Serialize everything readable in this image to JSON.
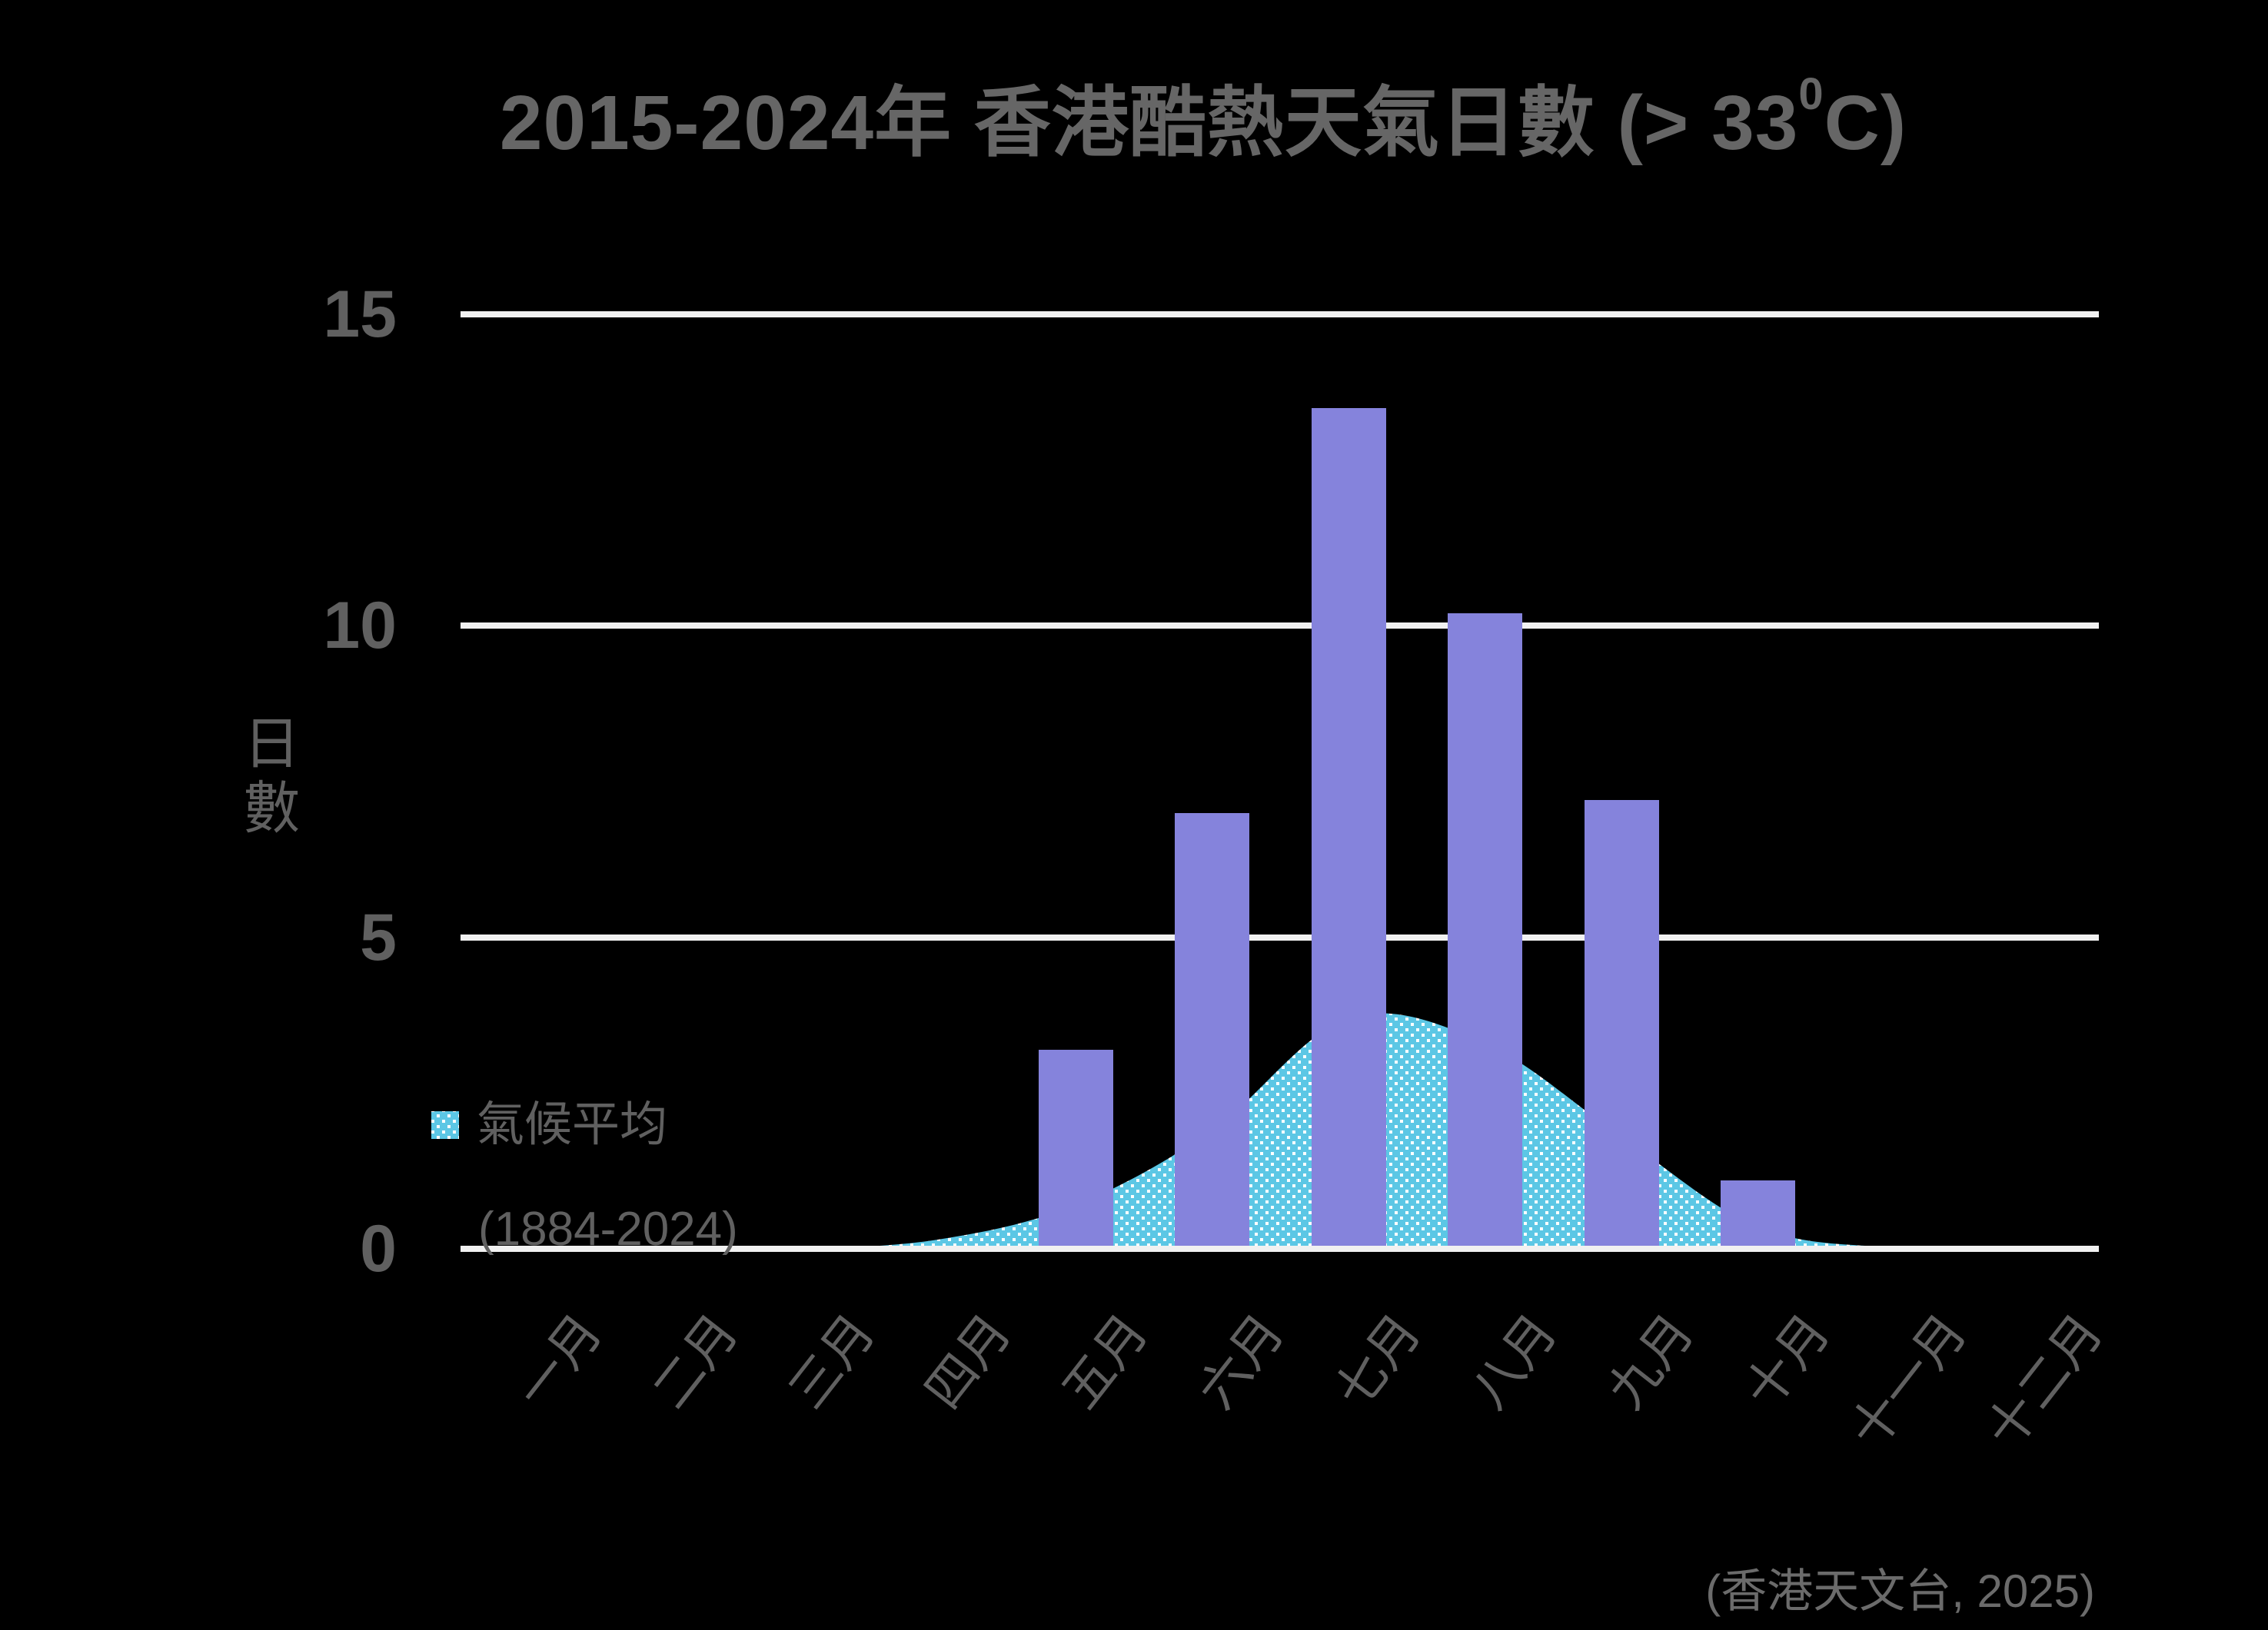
{
  "title": {
    "prefix": "2015-2024年 香港酷熱天氣日數 (> 33",
    "sup": "0",
    "suffix": "C)",
    "full": "2015-2024年 香港酷熱天氣日數 (> 33⁰C)"
  },
  "y_axis": {
    "title": "日數",
    "tick_labels": [
      "15",
      "10",
      "5",
      "0"
    ]
  },
  "legend": {
    "label": "氣候平均",
    "sublabel": "(1884-2024)"
  },
  "source": "(香港天文台, 2025)",
  "colors": {
    "background": "#000000",
    "bar": "#8583DC",
    "area": "#5CC7E5",
    "area_dot": "#FFFFFF",
    "gridline": "#F1F1F1",
    "text": "#606060",
    "title": "#666666"
  },
  "chart_data": {
    "type": "bar",
    "title": "2015-2024年 香港酷熱天氣日數 (> 33⁰C)",
    "xlabel": "",
    "ylabel": "日數",
    "ylim": [
      0,
      15
    ],
    "gridlines": [
      15,
      10,
      5,
      0
    ],
    "grid": "horizontal",
    "legend_position": "left-middle",
    "categories": [
      "一月",
      "二月",
      "三月",
      "四月",
      "五月",
      "六月",
      "七月",
      "八月",
      "九月",
      "十月",
      "十一月",
      "十二月"
    ],
    "series": [
      {
        "name": "2015-2024年 酷熱天氣日數",
        "type": "bar",
        "values": [
          0,
          0,
          0,
          0,
          3.2,
          7.0,
          13.5,
          10.2,
          7.2,
          1.1,
          0,
          0
        ]
      },
      {
        "name": "氣候平均 (1884-2024)",
        "type": "area",
        "values": [
          0,
          0,
          0,
          0.15,
          0.7,
          1.9,
          3.7,
          3.3,
          1.8,
          0.35,
          0.02,
          0
        ]
      }
    ]
  }
}
